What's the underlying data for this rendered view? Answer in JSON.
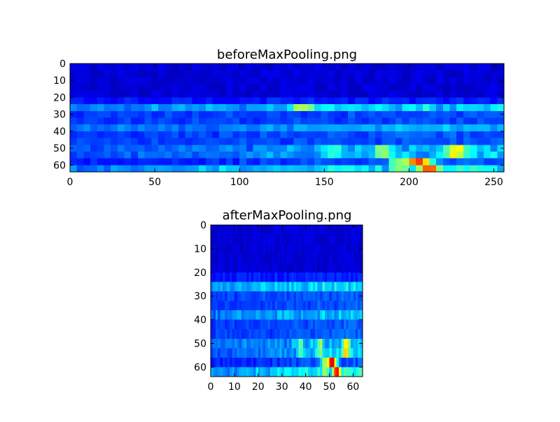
{
  "figure": {
    "background": "#ffffff"
  },
  "chart_data": [
    {
      "type": "heatmap",
      "title": "beforeMaxPooling.png",
      "xlabel": "",
      "ylabel": "",
      "cols": 256,
      "rows": 64,
      "xlim": [
        0,
        256
      ],
      "ylim": [
        64,
        0
      ],
      "xticks": [
        0,
        50,
        100,
        150,
        200,
        250
      ],
      "yticks": [
        0,
        10,
        20,
        30,
        40,
        50,
        60
      ],
      "colormap": "jet",
      "value_range": [
        0,
        1
      ],
      "band_rows": [
        {
          "row": 26,
          "level": 0.32
        },
        {
          "row": 32,
          "level": 0.28
        },
        {
          "row": 38,
          "level": 0.27
        },
        {
          "row": 44,
          "level": 0.3
        },
        {
          "row": 52,
          "level": 0.46
        },
        {
          "row": 61,
          "level": 0.4
        }
      ],
      "hotspots": [
        {
          "col": 228,
          "row": 52,
          "value": 0.88
        },
        {
          "col": 205,
          "row": 58,
          "value": 0.82
        },
        {
          "col": 212,
          "row": 61,
          "value": 0.85
        },
        {
          "col": 195,
          "row": 60,
          "value": 0.72
        },
        {
          "col": 185,
          "row": 52,
          "value": 0.7
        },
        {
          "col": 155,
          "row": 52,
          "value": 0.6
        },
        {
          "col": 137,
          "row": 26,
          "value": 0.55
        }
      ],
      "grid": false
    },
    {
      "type": "heatmap",
      "title": "afterMaxPooling.png",
      "xlabel": "",
      "ylabel": "",
      "cols": 64,
      "rows": 64,
      "xlim": [
        0,
        64
      ],
      "ylim": [
        64,
        0
      ],
      "xticks": [
        0,
        10,
        20,
        30,
        40,
        50,
        60
      ],
      "yticks": [
        0,
        10,
        20,
        30,
        40,
        50,
        60
      ],
      "colormap": "jet",
      "value_range": [
        0,
        1
      ],
      "band_rows": [
        {
          "row": 26,
          "level": 0.34
        },
        {
          "row": 32,
          "level": 0.3
        },
        {
          "row": 38,
          "level": 0.3
        },
        {
          "row": 44,
          "level": 0.32
        },
        {
          "row": 52,
          "level": 0.5
        },
        {
          "row": 61,
          "level": 0.45
        }
      ],
      "hotspots": [
        {
          "col": 57,
          "row": 52,
          "value": 0.92
        },
        {
          "col": 51,
          "row": 58,
          "value": 0.85
        },
        {
          "col": 53,
          "row": 61,
          "value": 0.9
        },
        {
          "col": 48,
          "row": 60,
          "value": 0.75
        },
        {
          "col": 46,
          "row": 52,
          "value": 0.72
        },
        {
          "col": 38,
          "row": 52,
          "value": 0.62
        }
      ],
      "grid": false
    }
  ]
}
